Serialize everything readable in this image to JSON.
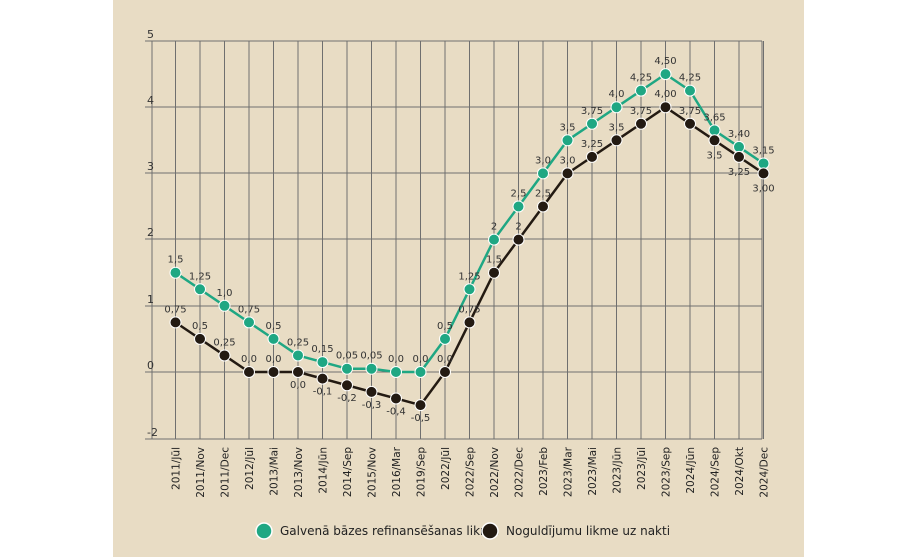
{
  "chart_data": {
    "type": "line",
    "categories": [
      "2011/Jūl",
      "2011/Nov",
      "2011/Dec",
      "2012/Jūl",
      "2013/Mai",
      "2013/Nov",
      "2014/Jūn",
      "2014/Sep",
      "2015/Nov",
      "2016/Mar",
      "2019/Sep",
      "2022/Jūl",
      "2022/Sep",
      "2022/Nov",
      "2022/Dec",
      "2023/Feb",
      "2023/Mar",
      "2023/Mai",
      "2023/Jūn",
      "2023/Jūl",
      "2023/Sep",
      "2024/Jūn",
      "2024/Sep",
      "2024/Okt",
      "2024/Dec"
    ],
    "y_ticks": [
      "5",
      "4",
      "3",
      "2",
      "1",
      "0",
      "-2"
    ],
    "series": [
      {
        "name": "Galvenā bāzes refinansēšanas likme",
        "color": "#1fa783",
        "labels": [
          "1,5",
          "1,25",
          "1,0",
          "0,75",
          "0,5",
          "0,25",
          "0,15",
          "0,05",
          "0,05",
          "0,0",
          "0,0",
          "0,5",
          "1,25",
          "2",
          "2,5",
          "3,0",
          "3,5",
          "3,75",
          "4,0",
          "4,25",
          "4,50",
          "4,25",
          "3,65",
          "3,40",
          "3,15"
        ]
      },
      {
        "name": "Noguldījumu likme uz nakti",
        "color": "#231a12",
        "labels": [
          "0,75",
          "0,5",
          "0,25",
          "0,0",
          "0,0",
          "0,0",
          "-0,1",
          "-0,2",
          "-0,3",
          "-0,4",
          "-0,5",
          "0,0",
          "0,75",
          "1,5",
          "2",
          "2,5",
          "3,0",
          "3,25",
          "3,5",
          "3,75",
          "4,00",
          "3,75",
          "3,5",
          "3,25",
          "3,00"
        ]
      }
    ],
    "grid": true,
    "legend_position": "bottom"
  }
}
